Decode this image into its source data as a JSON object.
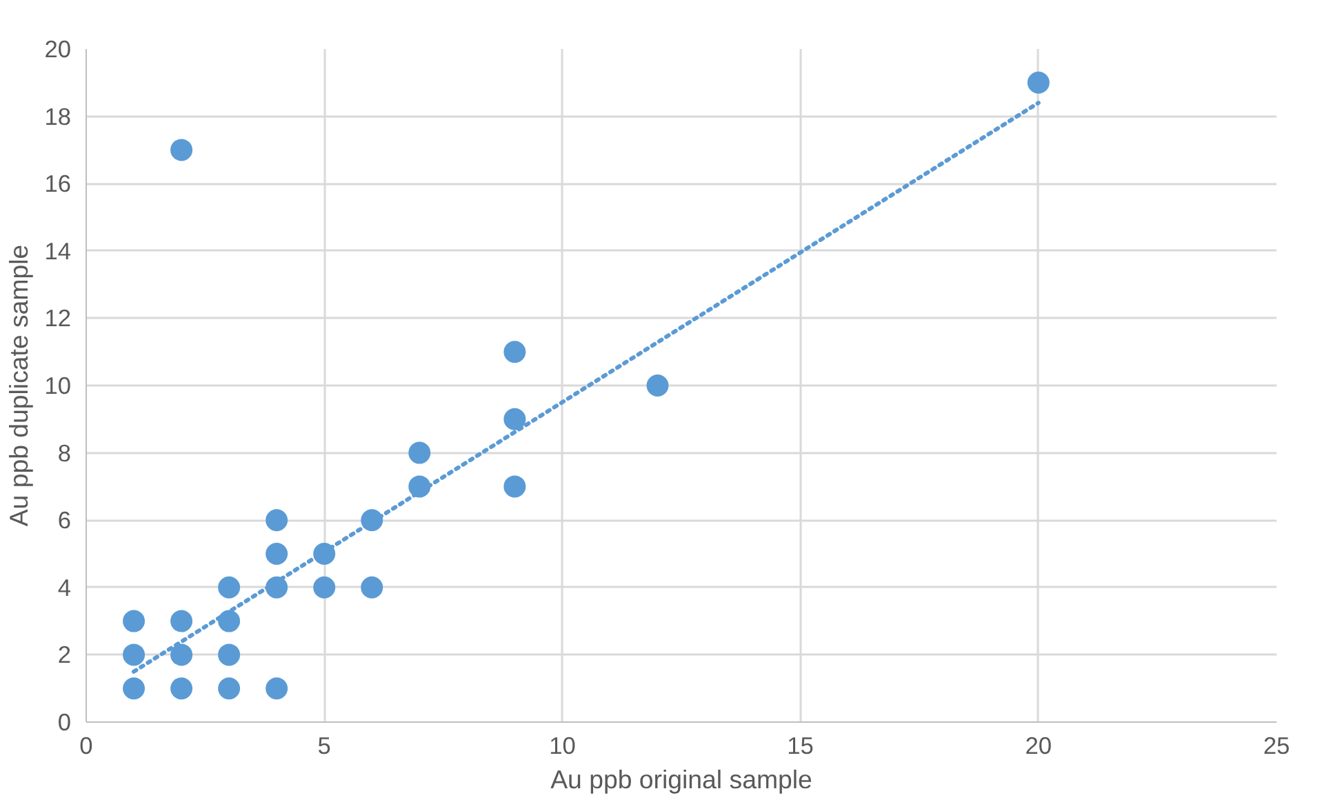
{
  "chart_data": {
    "type": "scatter",
    "xlabel": "Au ppb original sample",
    "ylabel": "Au ppb duplicate sample",
    "xlim": [
      0,
      25
    ],
    "xticks": [
      0,
      5,
      10,
      15,
      20,
      25
    ],
    "ylim": [
      0,
      20
    ],
    "yticks": [
      0,
      2,
      4,
      6,
      8,
      10,
      12,
      14,
      16,
      18,
      20
    ],
    "grid": true,
    "marker": "circle",
    "series": [
      {
        "color": "#5b9bd5",
        "x": [
          1,
          1,
          1,
          2,
          2,
          2,
          2,
          3,
          3,
          3,
          3,
          4,
          4,
          4,
          4,
          5,
          5,
          6,
          6,
          7,
          7,
          9,
          9,
          9,
          12,
          20
        ],
        "values": [
          1,
          2,
          3,
          17,
          3,
          2,
          1,
          4,
          3,
          2,
          1,
          6,
          5,
          4,
          1,
          5,
          4,
          6,
          4,
          8,
          7,
          11,
          9,
          7,
          10,
          19
        ]
      },
      {
        "type": "line",
        "color": "#5b9bd5",
        "line_style": "dotted",
        "marker": "none",
        "x": [
          1,
          20
        ],
        "values": [
          1.5,
          18.4
        ]
      }
    ]
  }
}
